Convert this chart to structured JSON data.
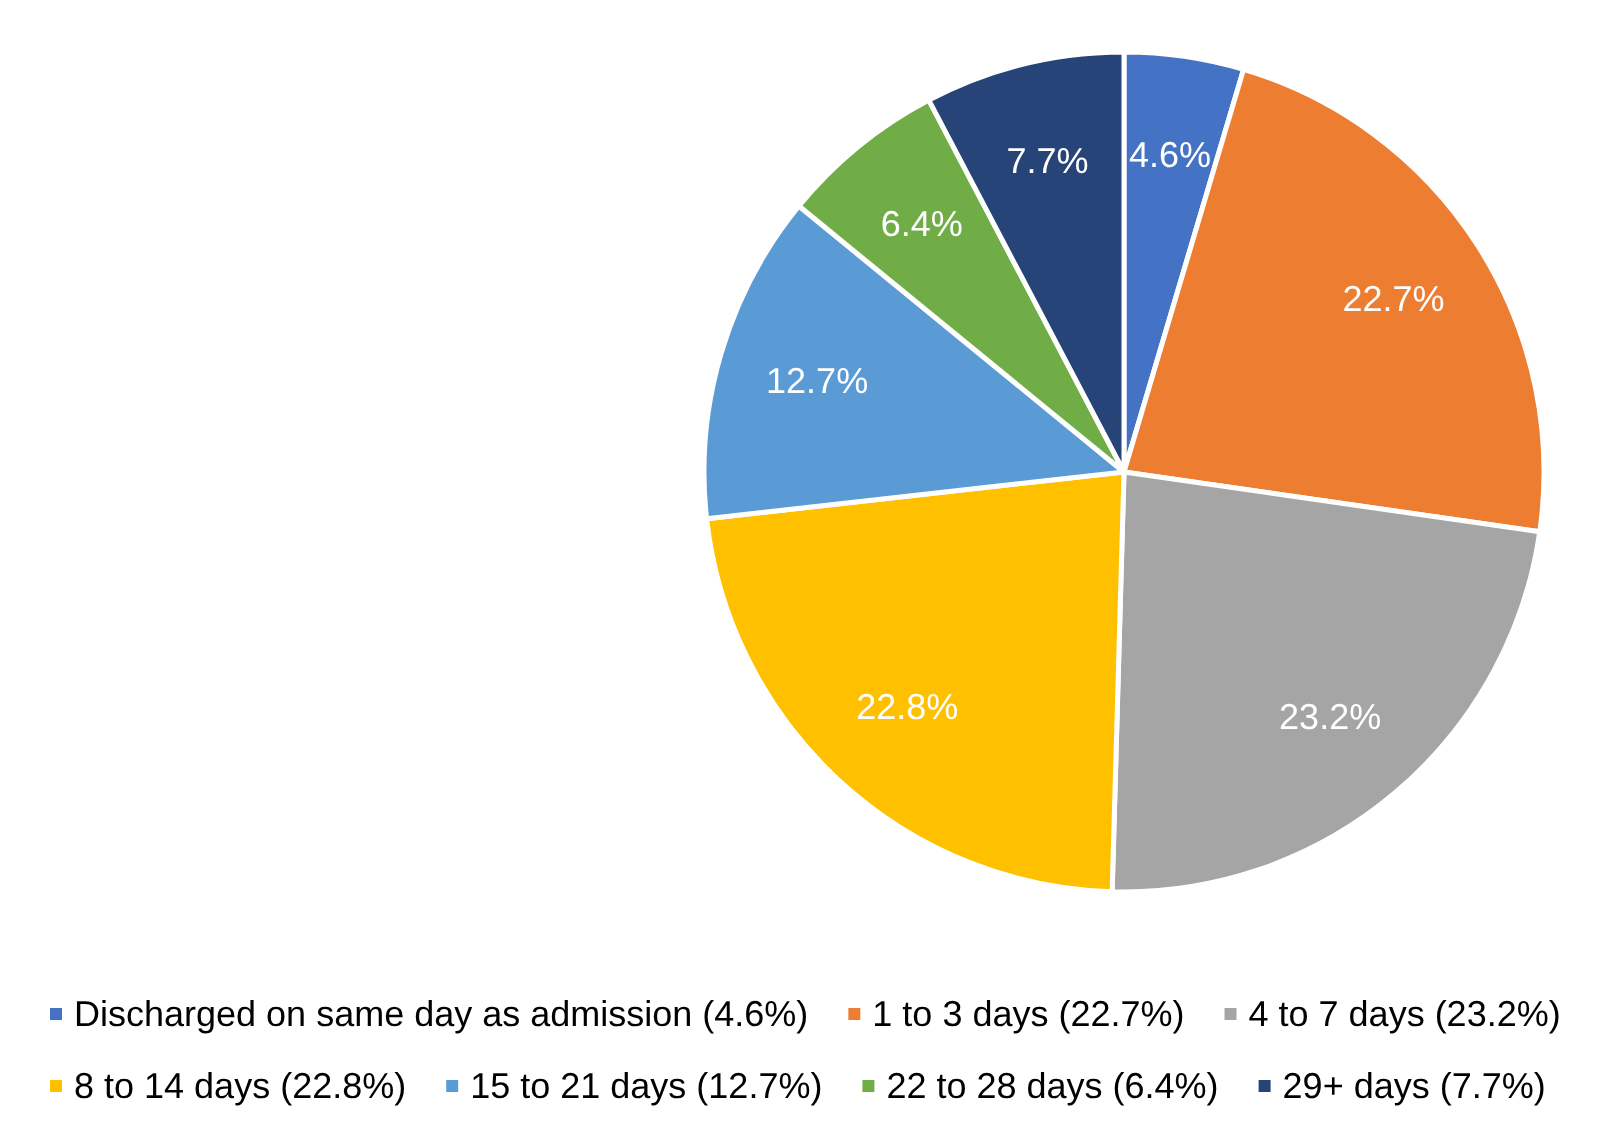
{
  "chart_data": {
    "type": "pie",
    "categories": [
      "Discharged on same day as admission (4.6%)",
      "1 to 3 days (22.7%)",
      "4 to 7 days (23.2%)",
      "8 to 14 days (22.8%)",
      "15 to 21 days (12.7%)",
      "22 to 28 days (6.4%)",
      "29+ days (7.7%)"
    ],
    "values": [
      4.6,
      22.7,
      23.2,
      22.8,
      12.7,
      6.4,
      7.7
    ],
    "colors": [
      "#4472c4",
      "#ed7d31",
      "#a5a5a5",
      "#ffc000",
      "#5b9bd5",
      "#70ad47",
      "#264478"
    ],
    "value_labels": [
      "4.6%",
      "22.7%",
      "23.2%",
      "22.8%",
      "12.7%",
      "6.4%",
      "7.7%"
    ],
    "legend": "bottom"
  }
}
